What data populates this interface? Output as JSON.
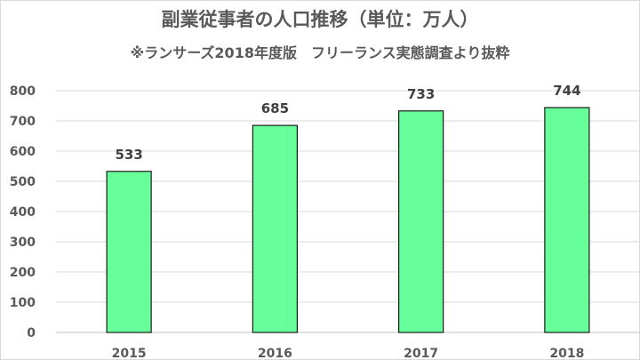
{
  "chart_data": {
    "type": "bar",
    "title": "副業従事者の人口推移（単位：万人）",
    "subtitle": "※ランサーズ2018年度版　フリーランス実態調査より抜粋",
    "categories": [
      "2015",
      "2016",
      "2017",
      "2018"
    ],
    "values": [
      533,
      685,
      733,
      744
    ],
    "ylim": [
      0,
      800
    ],
    "yticks": [
      0,
      100,
      200,
      300,
      400,
      500,
      600,
      700,
      800
    ],
    "xlabel": "",
    "ylabel": "",
    "grid": true,
    "legend": "none",
    "colors": {
      "bar_fill": "#66ff99",
      "bar_stroke": "#1a1a1a",
      "grid": "#d9d9d9",
      "axis": "#bfbfbf",
      "text": "#595959",
      "data_label": "#404040"
    }
  }
}
